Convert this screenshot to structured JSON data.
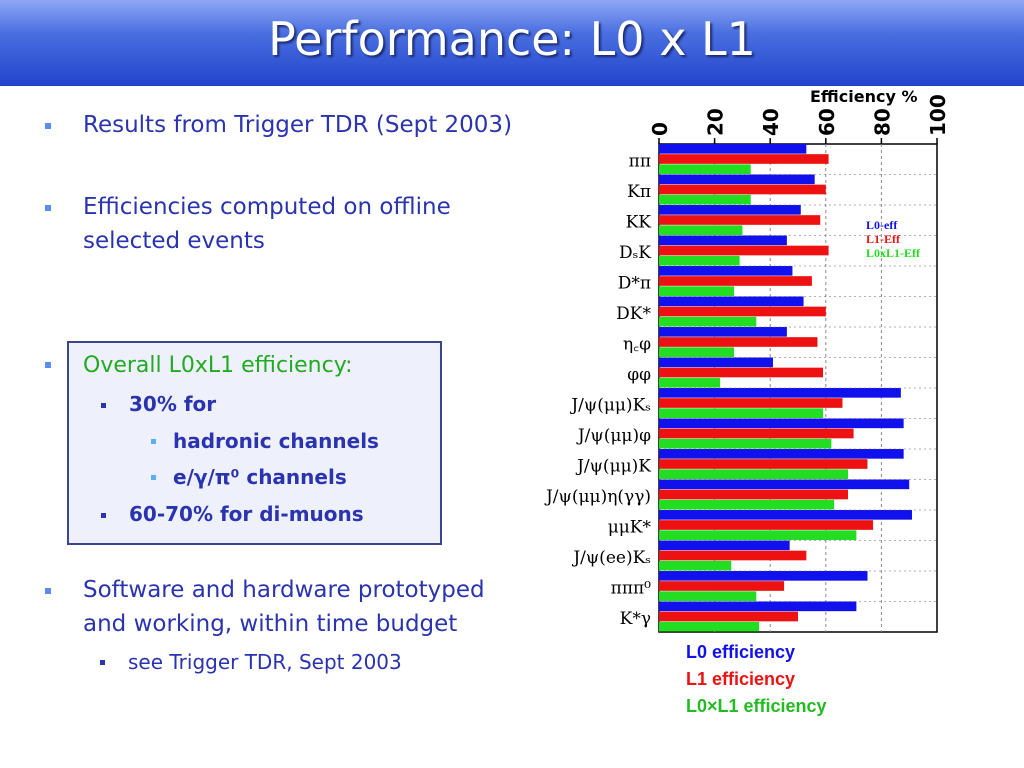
{
  "slide": {
    "title": "Performance: L0 x L1",
    "bullets": {
      "b1": "Results from Trigger TDR (Sept 2003)",
      "b2_line1": "Efficiencies computed on offline",
      "b2_line2": "selected events",
      "b3": "Overall L0xL1 efficiency:",
      "b3_sub1": "30% for",
      "b3_sub1a": "hadronic channels",
      "b3_sub1b": "e/γ/π⁰  channels",
      "b3_sub2": "60-70% for di-muons",
      "b4_line1": "Software and hardware prototyped",
      "b4_line2": "and working, within time budget",
      "b4_sub": "see Trigger TDR, Sept 2003"
    },
    "legend_below": [
      "L0 efficiency",
      "L1 efficiency",
      "L0×L1 efficiency"
    ],
    "colors": {
      "l0": "#1111ee",
      "l1": "#ee1111",
      "l0xl1": "#22dd22",
      "text": "#2a33b0",
      "accent": "#5b8df0"
    }
  },
  "chart_data": {
    "type": "bar",
    "orientation": "horizontal",
    "title": "Efficiency %",
    "xlim": [
      0,
      100
    ],
    "x_ticks": [
      "0",
      "20",
      "40",
      "60",
      "80",
      "100"
    ],
    "grid": true,
    "legend_position": "right",
    "categories": [
      "ππ",
      "Kπ",
      "KK",
      "DₛK",
      "D*π",
      "DK*",
      "η꜀φ",
      "φφ",
      "J/ψ(μμ)Kₛ",
      "J/ψ(μμ)φ",
      "J/ψ(μμ)K",
      "J/ψ(μμ)η(γγ)",
      "μμK*",
      "J/ψ(ee)Kₛ",
      "πππ⁰",
      "K*γ"
    ],
    "series": [
      {
        "name": "L0-eff",
        "color": "#1111ee",
        "values": [
          53,
          56,
          51,
          46,
          48,
          52,
          46,
          41,
          87,
          88,
          88,
          90,
          91,
          47,
          75,
          71
        ]
      },
      {
        "name": "L1-Eff",
        "color": "#ee1111",
        "values": [
          61,
          60,
          58,
          61,
          55,
          60,
          57,
          59,
          66,
          70,
          75,
          68,
          77,
          53,
          45,
          50
        ]
      },
      {
        "name": "L0xL1-Eff",
        "color": "#22dd22",
        "values": [
          33,
          33,
          30,
          29,
          27,
          35,
          27,
          22,
          59,
          62,
          68,
          63,
          71,
          26,
          35,
          36
        ]
      }
    ]
  }
}
